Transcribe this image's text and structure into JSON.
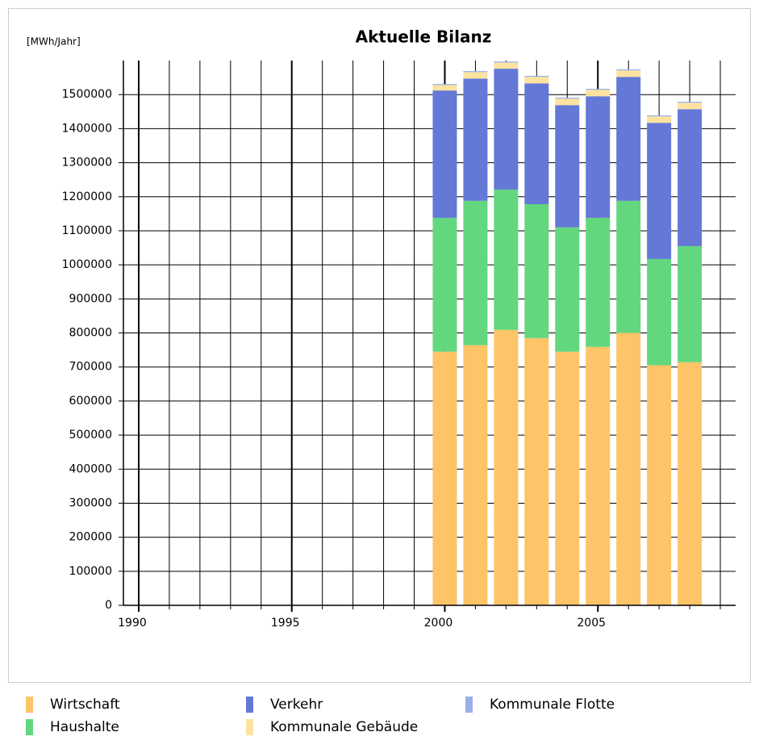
{
  "chart_data": {
    "type": "stacked_bar",
    "title": "Aktuelle Bilanz",
    "y_label": "[MWh/Jahr]",
    "x": [
      2000,
      2001,
      2002,
      2003,
      2004,
      2005,
      2006,
      2007,
      2008
    ],
    "series": [
      {
        "name": "Wirtschaft",
        "color": "#fdc468",
        "values": [
          745000,
          764000,
          809000,
          785000,
          745000,
          759000,
          800000,
          705000,
          714000
        ]
      },
      {
        "name": "Haushalte",
        "color": "#63d77d",
        "values": [
          393000,
          424000,
          412000,
          393000,
          365000,
          379000,
          388000,
          312000,
          341000
        ]
      },
      {
        "name": "Verkehr",
        "color": "#6479d6",
        "values": [
          374000,
          359000,
          355000,
          355000,
          359000,
          357000,
          364000,
          400000,
          402000
        ]
      },
      {
        "name": "Kommunale Gebäude",
        "color": "#fde3a0",
        "values": [
          16000,
          19000,
          18000,
          19000,
          19000,
          19000,
          19000,
          19000,
          19000
        ]
      },
      {
        "name": "Kommunale Flotte",
        "color": "#9ab0e8",
        "values": [
          3000,
          3000,
          3000,
          3000,
          3000,
          3000,
          3000,
          3000,
          3000
        ]
      }
    ],
    "xlim": [
      1989.5,
      2009.5
    ],
    "xticks": [
      1990,
      1995,
      2000,
      2005
    ],
    "x_grid_step": 1,
    "ylim": [
      0,
      1600000
    ],
    "yticks": [
      0,
      100000,
      200000,
      300000,
      400000,
      500000,
      600000,
      700000,
      800000,
      900000,
      1000000,
      1100000,
      1200000,
      1300000,
      1400000,
      1500000
    ],
    "grid": true,
    "legend": "bottom"
  }
}
